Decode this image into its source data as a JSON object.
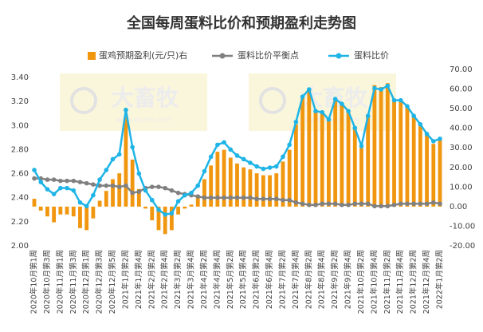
{
  "chart_data": {
    "type": "bar-line",
    "title": "全国每周蛋料比价和预期盈利走势图",
    "watermark": {
      "text": "大畜牧",
      "url": "www.dxumu.com"
    },
    "categories": [
      "2020年10月第1周",
      null,
      "2020年10月第3周",
      null,
      "2020年11月第1周",
      null,
      "2020年11月第3周",
      null,
      "2020年12月第1周",
      null,
      "2020年12月第3周",
      null,
      "2020年12月第5周",
      null,
      "2021年1月第2周",
      null,
      "2021年1月第4周",
      null,
      "2021年2月第2周",
      null,
      "2021年2月第4周",
      null,
      "2021年3月第2周",
      null,
      "2021年3月第4周",
      null,
      "2021年4月第2周",
      null,
      "2021年4月第4周",
      null,
      "2021年5月第2周",
      null,
      "2021年5月第4周",
      null,
      "2021年6月第2周",
      null,
      "2021年6月第4周",
      null,
      "2021年7月第2周",
      null,
      "2021年7月第4周",
      null,
      "2021年8月第2周",
      null,
      "2021年8月第4周",
      null,
      "2021年9月第2周",
      null,
      "2021年9月第4周",
      null,
      "2021年10月第2周",
      null,
      "2021年10月第4周",
      null,
      "2021年11月第2周",
      null,
      "2021年11月第4周",
      null,
      "2021年12月第2周",
      null,
      "2021年12月第4周",
      null,
      "2022年1月第2周"
    ],
    "series": [
      {
        "name": "蛋鸡预期盈利(元/只)右",
        "type": "bar",
        "axis": "y2",
        "color": "#f0960f",
        "values": [
          4,
          -2,
          -5,
          -8,
          -4,
          -4,
          -5,
          -11,
          -12,
          -6,
          3,
          8,
          14,
          17,
          46,
          24,
          9,
          -1,
          -7,
          -12,
          -14,
          -12,
          -4,
          -1,
          1,
          6,
          14,
          21,
          28,
          29,
          25,
          22,
          20,
          19,
          17,
          16,
          16,
          17,
          23,
          29,
          42,
          56,
          60,
          49,
          48,
          44,
          55,
          53,
          49,
          40,
          30,
          46,
          62,
          61,
          63,
          55,
          54,
          51,
          46,
          42,
          37,
          32,
          34
        ]
      },
      {
        "name": "蛋料比价平衡点",
        "type": "line",
        "color": "#808080",
        "values": [
          2.56,
          2.56,
          2.55,
          2.55,
          2.54,
          2.54,
          2.54,
          2.53,
          2.52,
          2.51,
          2.5,
          2.5,
          2.5,
          2.49,
          2.5,
          2.44,
          2.45,
          2.48,
          2.49,
          2.49,
          2.48,
          2.46,
          2.44,
          2.43,
          2.42,
          2.41,
          2.4,
          2.4,
          2.4,
          2.4,
          2.4,
          2.4,
          2.4,
          2.4,
          2.39,
          2.39,
          2.39,
          2.39,
          2.38,
          2.38,
          2.36,
          2.35,
          2.34,
          2.34,
          2.35,
          2.35,
          2.35,
          2.34,
          2.34,
          2.35,
          2.35,
          2.35,
          2.33,
          2.33,
          2.33,
          2.34,
          2.35,
          2.35,
          2.35,
          2.35,
          2.35,
          2.36,
          2.35
        ]
      },
      {
        "name": "蛋料比价",
        "type": "line",
        "color": "#1fb4e6",
        "values": [
          2.63,
          2.53,
          2.47,
          2.43,
          2.48,
          2.48,
          2.46,
          2.36,
          2.33,
          2.42,
          2.55,
          2.63,
          2.72,
          2.76,
          3.13,
          2.82,
          2.6,
          2.46,
          2.38,
          2.3,
          2.26,
          2.27,
          2.37,
          2.42,
          2.44,
          2.5,
          2.62,
          2.74,
          2.84,
          2.86,
          2.8,
          2.75,
          2.72,
          2.69,
          2.66,
          2.64,
          2.65,
          2.66,
          2.74,
          2.84,
          3.03,
          3.24,
          3.3,
          3.12,
          3.11,
          3.05,
          3.22,
          3.18,
          3.12,
          2.98,
          2.83,
          3.08,
          3.31,
          3.3,
          3.33,
          3.21,
          3.21,
          3.16,
          3.08,
          3.01,
          2.93,
          2.87,
          2.89
        ]
      }
    ],
    "ylim": [
      2.0,
      3.4
    ],
    "yticks": [
      {
        "value": 2.0,
        "label": "2.00"
      },
      {
        "value": 2.2,
        "label": "2.20"
      },
      {
        "value": 2.4,
        "label": "2.40"
      },
      {
        "value": 2.6,
        "label": "2.60"
      },
      {
        "value": 2.8,
        "label": "2.80"
      },
      {
        "value": 3.0,
        "label": "3.00"
      },
      {
        "value": 3.2,
        "label": "3.20"
      },
      {
        "value": 3.4,
        "label": "3.40"
      }
    ],
    "y2lim": [
      -20,
      70
    ],
    "y2ticks": [
      {
        "value": -20,
        "label": "-20.00"
      },
      {
        "value": -10,
        "label": "-10.00"
      },
      {
        "value": 0,
        "label": "0.00"
      },
      {
        "value": 10,
        "label": "10.00"
      },
      {
        "value": 20,
        "label": "20.00"
      },
      {
        "value": 30,
        "label": "30.00"
      },
      {
        "value": 40,
        "label": "40.00"
      },
      {
        "value": 50,
        "label": "50.00"
      },
      {
        "value": 60,
        "label": "60.00"
      },
      {
        "value": 70,
        "label": "70.00"
      }
    ],
    "grid": false,
    "legend": "top"
  }
}
